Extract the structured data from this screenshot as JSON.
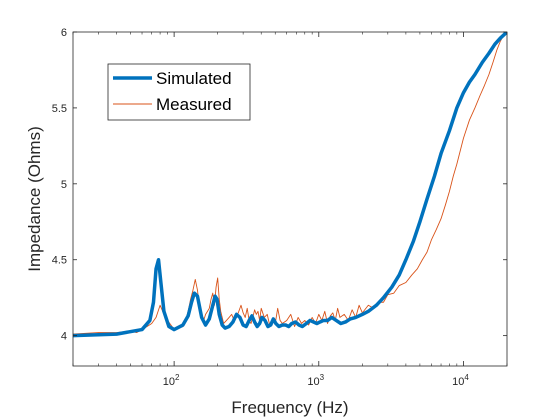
{
  "chart_data": {
    "type": "line",
    "title": "",
    "xlabel": "Frequency (Hz)",
    "ylabel": "Impedance (Ohms)",
    "x_scale": "log",
    "xlim": [
      20,
      20000
    ],
    "ylim": [
      3.8,
      6
    ],
    "grid": false,
    "legend_position": "top-left",
    "x_ticks": [
      {
        "value": 100,
        "base": "10",
        "exp": "2"
      },
      {
        "value": 1000,
        "base": "10",
        "exp": "3"
      },
      {
        "value": 10000,
        "base": "10",
        "exp": "4"
      }
    ],
    "y_ticks": [
      {
        "value": 4,
        "label": "4"
      },
      {
        "value": 4.5,
        "label": "4.5"
      },
      {
        "value": 5,
        "label": "5"
      },
      {
        "value": 5.5,
        "label": "5.5"
      },
      {
        "value": 6,
        "label": "6"
      }
    ],
    "series": [
      {
        "name": "Simulated",
        "color": "#0072BD",
        "x": [
          20,
          40,
          60,
          68,
          72,
          75,
          78,
          81,
          85,
          92,
          100,
          115,
          125,
          132,
          138,
          145,
          155,
          165,
          175,
          185,
          192,
          198,
          205,
          215,
          225,
          240,
          255,
          270,
          285,
          300,
          315,
          330,
          345,
          360,
          375,
          390,
          405,
          425,
          445,
          465,
          485,
          505,
          530,
          560,
          590,
          620,
          650,
          690,
          730,
          770,
          820,
          870,
          920,
          970,
          1020,
          1080,
          1150,
          1230,
          1320,
          1420,
          1530,
          1650,
          1800,
          2000,
          2200,
          2500,
          2800,
          3200,
          3600,
          4000,
          4500,
          5000,
          5600,
          6300,
          7000,
          8000,
          9000,
          10000,
          11000,
          12000,
          13500,
          15000,
          16500,
          18000,
          20000
        ],
        "values": [
          4.0,
          4.01,
          4.04,
          4.1,
          4.22,
          4.44,
          4.5,
          4.35,
          4.16,
          4.06,
          4.04,
          4.07,
          4.13,
          4.22,
          4.28,
          4.26,
          4.12,
          4.07,
          4.11,
          4.2,
          4.26,
          4.24,
          4.14,
          4.07,
          4.05,
          4.06,
          4.09,
          4.14,
          4.12,
          4.07,
          4.06,
          4.1,
          4.13,
          4.09,
          4.06,
          4.08,
          4.12,
          4.1,
          4.06,
          4.07,
          4.11,
          4.08,
          4.06,
          4.07,
          4.07,
          4.06,
          4.08,
          4.09,
          4.07,
          4.06,
          4.08,
          4.1,
          4.09,
          4.08,
          4.09,
          4.1,
          4.1,
          4.12,
          4.1,
          4.08,
          4.09,
          4.11,
          4.12,
          4.14,
          4.16,
          4.2,
          4.25,
          4.32,
          4.4,
          4.5,
          4.62,
          4.75,
          4.9,
          5.05,
          5.2,
          5.35,
          5.5,
          5.6,
          5.67,
          5.72,
          5.8,
          5.86,
          5.92,
          5.96,
          6.0
        ]
      },
      {
        "name": "Measured",
        "color": "#D95319",
        "x": [
          20,
          30,
          40,
          50,
          55,
          60,
          65,
          70,
          75,
          80,
          85,
          90,
          95,
          100,
          108,
          115,
          120,
          125,
          130,
          135,
          140,
          145,
          150,
          155,
          160,
          165,
          170,
          175,
          180,
          185,
          190,
          195,
          200,
          205,
          210,
          215,
          220,
          230,
          240,
          250,
          260,
          270,
          280,
          290,
          300,
          310,
          320,
          330,
          340,
          350,
          360,
          370,
          380,
          390,
          400,
          420,
          440,
          460,
          480,
          500,
          520,
          540,
          560,
          600,
          640,
          680,
          720,
          760,
          800,
          850,
          900,
          950,
          1000,
          1050,
          1100,
          1150,
          1200,
          1250,
          1300,
          1350,
          1400,
          1500,
          1600,
          1700,
          1800,
          1900,
          2000,
          2200,
          2400,
          2600,
          2800,
          3000,
          3300,
          3600,
          4000,
          4400,
          4800,
          5200,
          5600,
          6000,
          6500,
          7000,
          7500,
          8000,
          8500,
          9000,
          10000,
          11000,
          12000,
          13000,
          14000,
          15000,
          16000,
          17000,
          18000,
          19000,
          20000
        ],
        "values": [
          4.01,
          4.02,
          4.02,
          4.03,
          4.02,
          4.04,
          4.06,
          4.08,
          4.12,
          4.2,
          4.14,
          4.1,
          4.07,
          4.04,
          4.05,
          4.06,
          4.1,
          4.16,
          4.24,
          4.3,
          4.37,
          4.3,
          4.18,
          4.12,
          4.1,
          4.14,
          4.16,
          4.18,
          4.24,
          4.28,
          4.2,
          4.32,
          4.38,
          4.24,
          4.16,
          4.12,
          4.08,
          4.1,
          4.12,
          4.14,
          4.1,
          4.12,
          4.16,
          4.2,
          4.15,
          4.12,
          4.18,
          4.1,
          4.08,
          4.12,
          4.17,
          4.14,
          4.16,
          4.1,
          4.18,
          4.12,
          4.14,
          4.06,
          4.1,
          4.08,
          4.18,
          4.1,
          4.08,
          4.1,
          4.14,
          4.06,
          4.12,
          4.08,
          4.1,
          4.07,
          4.12,
          4.08,
          4.14,
          4.1,
          4.16,
          4.08,
          4.13,
          4.15,
          4.1,
          4.18,
          4.12,
          4.14,
          4.1,
          4.17,
          4.12,
          4.2,
          4.15,
          4.2,
          4.18,
          4.22,
          4.22,
          4.27,
          4.28,
          4.33,
          4.35,
          4.4,
          4.44,
          4.5,
          4.55,
          4.63,
          4.7,
          4.77,
          4.86,
          4.95,
          5.05,
          5.13,
          5.3,
          5.42,
          5.5,
          5.58,
          5.65,
          5.72,
          5.8,
          5.88,
          5.94,
          5.98,
          6.0
        ]
      }
    ]
  }
}
